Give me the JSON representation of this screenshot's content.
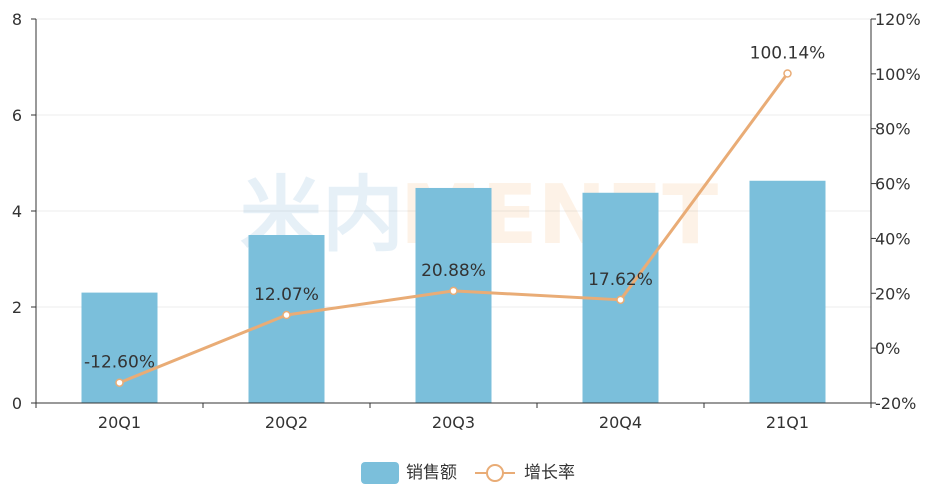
{
  "watermark": {
    "cjk": "米内",
    "latin": "MENET"
  },
  "chart_data": {
    "type": "bar",
    "categories": [
      "20Q1",
      "20Q2",
      "20Q3",
      "20Q4",
      "21Q1"
    ],
    "series": [
      {
        "name": "销售额",
        "type": "bar",
        "axis": "left",
        "color": "#7bbfdb",
        "values": [
          2.3,
          3.5,
          4.48,
          4.38,
          4.63
        ]
      },
      {
        "name": "增长率",
        "type": "line",
        "axis": "right",
        "color": "#e9ac76",
        "values": [
          -12.6,
          12.07,
          20.88,
          17.62,
          100.14
        ],
        "labels": [
          "-12.60%",
          "12.07%",
          "20.88%",
          "17.62%",
          "100.14%"
        ]
      }
    ],
    "y_left": {
      "ylim": [
        0,
        8
      ],
      "ticks": [
        0,
        2,
        4,
        6,
        8
      ],
      "tick_labels": [
        "0",
        "2",
        "4",
        "6",
        "8"
      ]
    },
    "y_right": {
      "ylim": [
        -20,
        120
      ],
      "ticks": [
        -20,
        0,
        20,
        40,
        60,
        80,
        100,
        120
      ],
      "tick_labels": [
        "-20%",
        "0%",
        "20%",
        "40%",
        "60%",
        "80%",
        "100%",
        "120%"
      ]
    },
    "grid": true,
    "legend_position": "bottom-center",
    "title": "",
    "xlabel": "",
    "ylabel": ""
  }
}
